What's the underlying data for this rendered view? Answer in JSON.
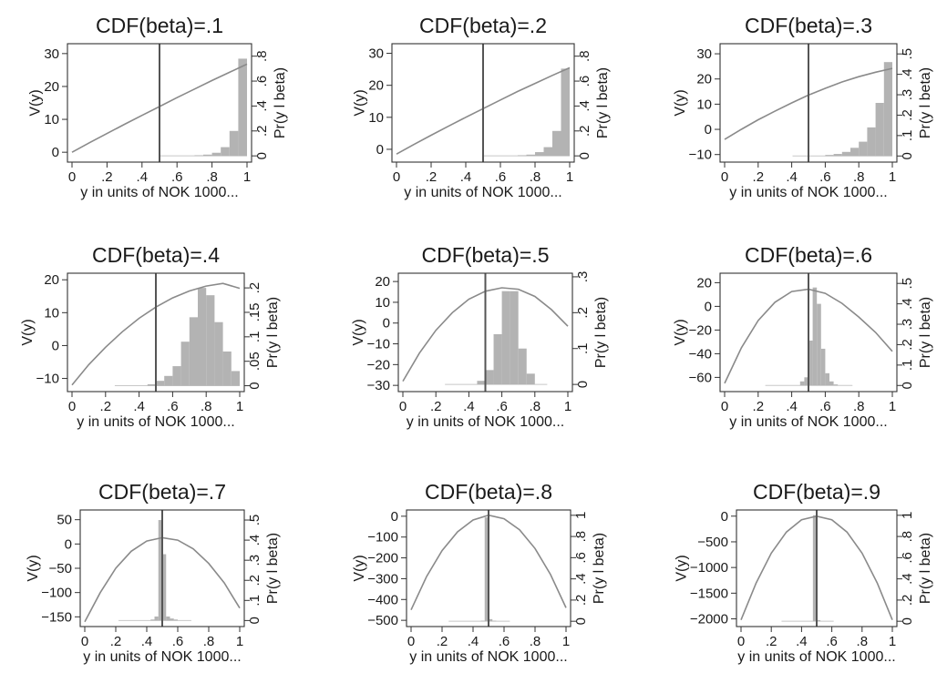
{
  "chart_data": [
    {
      "type": "bar",
      "title": "CDF(beta)=.1",
      "xlabel": "y in units of NOK 1000...",
      "ylabel": "V(y)",
      "y2label": "Pr(y l beta)",
      "xlim": [
        0,
        1
      ],
      "xticks": [
        0,
        0.2,
        0.4,
        0.6,
        0.8,
        1
      ],
      "xtick_labels": [
        "0",
        ".2",
        ".4",
        ".6",
        ".8",
        "1"
      ],
      "ylim": [
        -3,
        33
      ],
      "yticks": [
        0,
        10,
        20,
        30
      ],
      "ytick_labels": [
        "0",
        "10",
        "20",
        "30"
      ],
      "y2lim": [
        -0.05,
        0.9
      ],
      "y2ticks": [
        0,
        0.2,
        0.4,
        0.6,
        0.8
      ],
      "y2tick_labels": [
        "0",
        ".2",
        ".4",
        ".6",
        ".8"
      ],
      "vline_x": 0.5,
      "series": [
        {
          "kind": "line",
          "axis": "V(y)",
          "x": [
            0,
            0.1,
            0.2,
            0.3,
            0.4,
            0.5,
            0.6,
            0.7,
            0.8,
            0.9,
            1.0
          ],
          "values": [
            0,
            2.9,
            5.7,
            8.5,
            11.2,
            13.9,
            16.6,
            19.2,
            21.8,
            24.3,
            26.8
          ]
        },
        {
          "kind": "histogram",
          "axis": "Pr(y l beta)",
          "bin_width": 0.05,
          "x": [
            0.725,
            0.775,
            0.825,
            0.875,
            0.925,
            0.975
          ],
          "values": [
            0.005,
            0.01,
            0.025,
            0.07,
            0.2,
            0.78
          ]
        }
      ]
    },
    {
      "type": "bar",
      "title": "CDF(beta)=.2",
      "xlabel": "y in units of NOK 1000...",
      "ylabel": "V(y)",
      "y2label": "Pr(y l beta)",
      "xlim": [
        0,
        1
      ],
      "xticks": [
        0,
        0.2,
        0.4,
        0.6,
        0.8,
        1
      ],
      "xtick_labels": [
        "0",
        ".2",
        ".4",
        ".6",
        ".8",
        "1"
      ],
      "ylim": [
        -4,
        33
      ],
      "yticks": [
        0,
        10,
        20,
        30
      ],
      "ytick_labels": [
        "0",
        "10",
        "20",
        "30"
      ],
      "y2lim": [
        -0.05,
        0.9
      ],
      "y2ticks": [
        0,
        0.2,
        0.4,
        0.6,
        0.8
      ],
      "y2tick_labels": [
        "0",
        ".2",
        ".4",
        ".6",
        ".8"
      ],
      "vline_x": 0.5,
      "series": [
        {
          "kind": "line",
          "axis": "V(y)",
          "x": [
            0,
            0.1,
            0.2,
            0.3,
            0.4,
            0.5,
            0.6,
            0.7,
            0.8,
            0.9,
            1.0
          ],
          "values": [
            -1.5,
            1.5,
            4.4,
            7.2,
            10.0,
            12.7,
            15.4,
            18.1,
            20.6,
            23.1,
            25.5
          ]
        },
        {
          "kind": "histogram",
          "axis": "Pr(y l beta)",
          "bin_width": 0.05,
          "x": [
            0.725,
            0.775,
            0.825,
            0.875,
            0.925,
            0.975
          ],
          "values": [
            0.005,
            0.01,
            0.03,
            0.07,
            0.2,
            0.7
          ]
        }
      ]
    },
    {
      "type": "bar",
      "title": "CDF(beta)=.3",
      "xlabel": "y in units of NOK 1000...",
      "ylabel": "V(y)",
      "y2label": "Pr(y l beta)",
      "xlim": [
        0,
        1
      ],
      "xticks": [
        0,
        0.2,
        0.4,
        0.6,
        0.8,
        1
      ],
      "xtick_labels": [
        "0",
        ".2",
        ".4",
        ".6",
        ".8",
        "1"
      ],
      "ylim": [
        -13,
        34
      ],
      "yticks": [
        -10,
        0,
        10,
        20,
        30
      ],
      "ytick_labels": [
        "−10",
        "0",
        "10",
        "20",
        "30"
      ],
      "y2lim": [
        -0.03,
        0.55
      ],
      "y2ticks": [
        0,
        0.1,
        0.2,
        0.3,
        0.4,
        0.5
      ],
      "y2tick_labels": [
        "0",
        ".1",
        ".2",
        ".3",
        ".4",
        ".5"
      ],
      "vline_x": 0.5,
      "series": [
        {
          "kind": "line",
          "axis": "V(y)",
          "x": [
            0,
            0.1,
            0.2,
            0.3,
            0.4,
            0.5,
            0.6,
            0.7,
            0.8,
            0.9,
            1.0
          ],
          "values": [
            -4,
            0,
            3.8,
            7.2,
            10.5,
            13.6,
            16.3,
            18.8,
            20.9,
            22.7,
            24.2
          ]
        },
        {
          "kind": "histogram",
          "axis": "Pr(y l beta)",
          "bin_width": 0.05,
          "x": [
            0.625,
            0.675,
            0.725,
            0.775,
            0.825,
            0.875,
            0.925,
            0.975
          ],
          "values": [
            0.005,
            0.01,
            0.02,
            0.04,
            0.07,
            0.14,
            0.26,
            0.46
          ]
        }
      ]
    },
    {
      "type": "bar",
      "title": "CDF(beta)=.4",
      "xlabel": "y in units of NOK 1000...",
      "ylabel": "V(y)",
      "y2label": "Pr(y l beta)",
      "xlim": [
        0,
        1
      ],
      "xticks": [
        0,
        0.2,
        0.4,
        0.6,
        0.8,
        1
      ],
      "xtick_labels": [
        "0",
        ".2",
        ".4",
        ".6",
        ".8",
        "1"
      ],
      "ylim": [
        -14,
        22
      ],
      "yticks": [
        -10,
        0,
        10,
        20
      ],
      "ytick_labels": [
        "−10",
        "0",
        "10",
        "20"
      ],
      "y2lim": [
        -0.012,
        0.23
      ],
      "y2ticks": [
        0,
        0.05,
        0.1,
        0.15,
        0.2
      ],
      "y2tick_labels": [
        "0",
        ".05",
        ".1",
        ".15",
        ".2"
      ],
      "vline_x": 0.5,
      "series": [
        {
          "kind": "line",
          "axis": "V(y)",
          "x": [
            0,
            0.1,
            0.2,
            0.3,
            0.4,
            0.5,
            0.6,
            0.7,
            0.8,
            0.9,
            1.0
          ],
          "values": [
            -12,
            -5.8,
            -0.5,
            4.2,
            8.3,
            11.7,
            14.5,
            16.6,
            18.1,
            18.9,
            17.4
          ]
        },
        {
          "kind": "histogram",
          "axis": "Pr(y l beta)",
          "bin_width": 0.05,
          "x": [
            0.475,
            0.525,
            0.575,
            0.625,
            0.675,
            0.725,
            0.775,
            0.825,
            0.875,
            0.925,
            0.975
          ],
          "values": [
            0.003,
            0.01,
            0.02,
            0.04,
            0.09,
            0.14,
            0.2,
            0.185,
            0.13,
            0.07,
            0.03
          ]
        }
      ]
    },
    {
      "type": "bar",
      "title": "CDF(beta)=.5",
      "xlabel": "y in units of NOK 1000...",
      "ylabel": "V(y)",
      "y2label": "Pr(y l beta)",
      "xlim": [
        0,
        1
      ],
      "xticks": [
        0,
        0.2,
        0.4,
        0.6,
        0.8,
        1
      ],
      "xtick_labels": [
        "0",
        ".2",
        ".4",
        ".6",
        ".8",
        "1"
      ],
      "ylim": [
        -33,
        24
      ],
      "yticks": [
        -30,
        -20,
        -10,
        0,
        10,
        20
      ],
      "ytick_labels": [
        "−30",
        "−20",
        "−10",
        "0",
        "10",
        "20"
      ],
      "y2lim": [
        -0.02,
        0.31
      ],
      "y2ticks": [
        0,
        0.1,
        0.2,
        0.3
      ],
      "y2tick_labels": [
        "0",
        ".1",
        ".2",
        ".3"
      ],
      "vline_x": 0.5,
      "series": [
        {
          "kind": "line",
          "axis": "V(y)",
          "x": [
            0,
            0.1,
            0.2,
            0.3,
            0.4,
            0.5,
            0.6,
            0.7,
            0.8,
            0.9,
            1.0
          ],
          "values": [
            -28,
            -14.5,
            -3.5,
            5,
            11.5,
            15.3,
            17,
            16.3,
            12.8,
            6.5,
            -1.5
          ]
        },
        {
          "kind": "histogram",
          "axis": "Pr(y l beta)",
          "bin_width": 0.05,
          "x": [
            0.475,
            0.525,
            0.575,
            0.625,
            0.675,
            0.725,
            0.775
          ],
          "values": [
            0.01,
            0.04,
            0.14,
            0.26,
            0.26,
            0.1,
            0.03
          ]
        }
      ]
    },
    {
      "type": "bar",
      "title": "CDF(beta)=.6",
      "xlabel": "y in units of NOK 1000...",
      "ylabel": "V(y)",
      "y2label": "Pr(y l beta)",
      "xlim": [
        0,
        1
      ],
      "xticks": [
        0,
        0.2,
        0.4,
        0.6,
        0.8,
        1
      ],
      "xtick_labels": [
        "0",
        ".2",
        ".4",
        ".6",
        ".8",
        "1"
      ],
      "ylim": [
        -72,
        28
      ],
      "yticks": [
        -60,
        -40,
        -20,
        0,
        20
      ],
      "ytick_labels": [
        "−60",
        "−40",
        "−20",
        "0",
        "20"
      ],
      "y2lim": [
        -0.03,
        0.55
      ],
      "y2ticks": [
        0,
        0.1,
        0.2,
        0.3,
        0.4,
        0.5
      ],
      "y2tick_labels": [
        "0",
        ".1",
        ".2",
        ".3",
        ".4",
        ".5"
      ],
      "vline_x": 0.5,
      "series": [
        {
          "kind": "line",
          "axis": "V(y)",
          "x": [
            0,
            0.1,
            0.2,
            0.3,
            0.4,
            0.5,
            0.6,
            0.7,
            0.8,
            0.9,
            1.0
          ],
          "values": [
            -65,
            -35,
            -12,
            3.5,
            12.5,
            14.5,
            11,
            2.5,
            -9,
            -22,
            -38
          ]
        },
        {
          "kind": "histogram",
          "axis": "Pr(y l beta)",
          "bin_width": 0.025,
          "x": [
            0.4625,
            0.4875,
            0.5125,
            0.5375,
            0.5625,
            0.5875,
            0.6125,
            0.6375,
            0.6625
          ],
          "values": [
            0.02,
            0.04,
            0.22,
            0.48,
            0.4,
            0.18,
            0.06,
            0.02,
            0.005
          ]
        }
      ]
    },
    {
      "type": "bar",
      "title": "CDF(beta)=.7",
      "xlabel": "y in units of NOK 1000...",
      "ylabel": "V(y)",
      "y2label": "Pr(y l beta)",
      "xlim": [
        0,
        1
      ],
      "xticks": [
        0,
        0.2,
        0.4,
        0.6,
        0.8,
        1
      ],
      "xtick_labels": [
        "0",
        ".2",
        ".4",
        ".6",
        ".8",
        "1"
      ],
      "ylim": [
        -170,
        70
      ],
      "yticks": [
        -150,
        -100,
        -50,
        0,
        50
      ],
      "ytick_labels": [
        "−150",
        "−100",
        "−50",
        "0",
        "50"
      ],
      "y2lim": [
        -0.03,
        0.55
      ],
      "y2ticks": [
        0,
        0.1,
        0.2,
        0.3,
        0.4,
        0.5
      ],
      "y2tick_labels": [
        "0",
        ".1",
        ".2",
        ".3",
        ".4",
        ".5"
      ],
      "vline_x": 0.5,
      "series": [
        {
          "kind": "line",
          "axis": "V(y)",
          "x": [
            0,
            0.1,
            0.2,
            0.3,
            0.4,
            0.5,
            0.6,
            0.7,
            0.8,
            0.9,
            1.0
          ],
          "values": [
            -160,
            -100,
            -50,
            -15,
            6,
            13,
            8,
            -10,
            -40,
            -80,
            -132
          ]
        },
        {
          "kind": "histogram",
          "axis": "Pr(y l beta)",
          "bin_width": 0.025,
          "x": [
            0.4375,
            0.4625,
            0.4875,
            0.5125,
            0.5375,
            0.5625,
            0.5875
          ],
          "values": [
            0.005,
            0.02,
            0.5,
            0.33,
            0.02,
            0.01,
            0.005
          ]
        }
      ]
    },
    {
      "type": "bar",
      "title": "CDF(beta)=.8",
      "xlabel": "y in units of NOK 1000...",
      "ylabel": "V(y)",
      "y2label": "Pr(y l beta)",
      "xlim": [
        0,
        1
      ],
      "xticks": [
        0,
        0.2,
        0.4,
        0.6,
        0.8,
        1
      ],
      "xtick_labels": [
        "0",
        ".2",
        ".4",
        ".6",
        ".8",
        "1"
      ],
      "ylim": [
        -530,
        30
      ],
      "yticks": [
        -500,
        -400,
        -300,
        -200,
        -100,
        0
      ],
      "ytick_labels": [
        "−500",
        "−400",
        "−300",
        "−200",
        "−100",
        "0"
      ],
      "y2lim": [
        -0.05,
        1.05
      ],
      "y2ticks": [
        0,
        0.2,
        0.4,
        0.6,
        0.8,
        1
      ],
      "y2tick_labels": [
        "0",
        ".2",
        ".4",
        ".6",
        ".8",
        "1"
      ],
      "vline_x": 0.5,
      "series": [
        {
          "kind": "line",
          "axis": "V(y)",
          "x": [
            0,
            0.1,
            0.2,
            0.3,
            0.4,
            0.5,
            0.6,
            0.7,
            0.8,
            0.9,
            1.0
          ],
          "values": [
            -450,
            -290,
            -165,
            -75,
            -18,
            5,
            -12,
            -65,
            -155,
            -280,
            -440
          ]
        },
        {
          "kind": "histogram",
          "axis": "Pr(y l beta)",
          "bin_width": 0.025,
          "x": [
            0.4625,
            0.4875,
            0.5125,
            0.5375
          ],
          "values": [
            0.005,
            0.98,
            0.02,
            0.005
          ]
        }
      ]
    },
    {
      "type": "bar",
      "title": "CDF(beta)=.9",
      "xlabel": "y in units of NOK 1000...",
      "ylabel": "V(y)",
      "y2label": "Pr(y l beta)",
      "xlim": [
        0,
        1
      ],
      "xticks": [
        0,
        0.2,
        0.4,
        0.6,
        0.8,
        1
      ],
      "xtick_labels": [
        "0",
        ".2",
        ".4",
        ".6",
        ".8",
        "1"
      ],
      "ylim": [
        -2150,
        120
      ],
      "yticks": [
        -2000,
        -1500,
        -1000,
        -500,
        0
      ],
      "ytick_labels": [
        "−2000",
        "−1500",
        "−1000",
        "−500",
        "0"
      ],
      "y2lim": [
        -0.05,
        1.05
      ],
      "y2ticks": [
        0,
        0.2,
        0.4,
        0.6,
        0.8,
        1
      ],
      "y2tick_labels": [
        "0",
        ".2",
        ".4",
        ".6",
        ".8",
        "1"
      ],
      "vline_x": 0.5,
      "series": [
        {
          "kind": "line",
          "axis": "V(y)",
          "x": [
            0,
            0.1,
            0.2,
            0.3,
            0.4,
            0.5,
            0.6,
            0.7,
            0.8,
            0.9,
            1.0
          ],
          "values": [
            -2020,
            -1300,
            -720,
            -310,
            -70,
            0,
            -70,
            -310,
            -720,
            -1300,
            -2020
          ]
        },
        {
          "kind": "histogram",
          "axis": "Pr(y l beta)",
          "bin_width": 0.025,
          "x": [
            0.4875,
            0.5125
          ],
          "values": [
            1.0,
            0.01
          ]
        }
      ]
    }
  ]
}
